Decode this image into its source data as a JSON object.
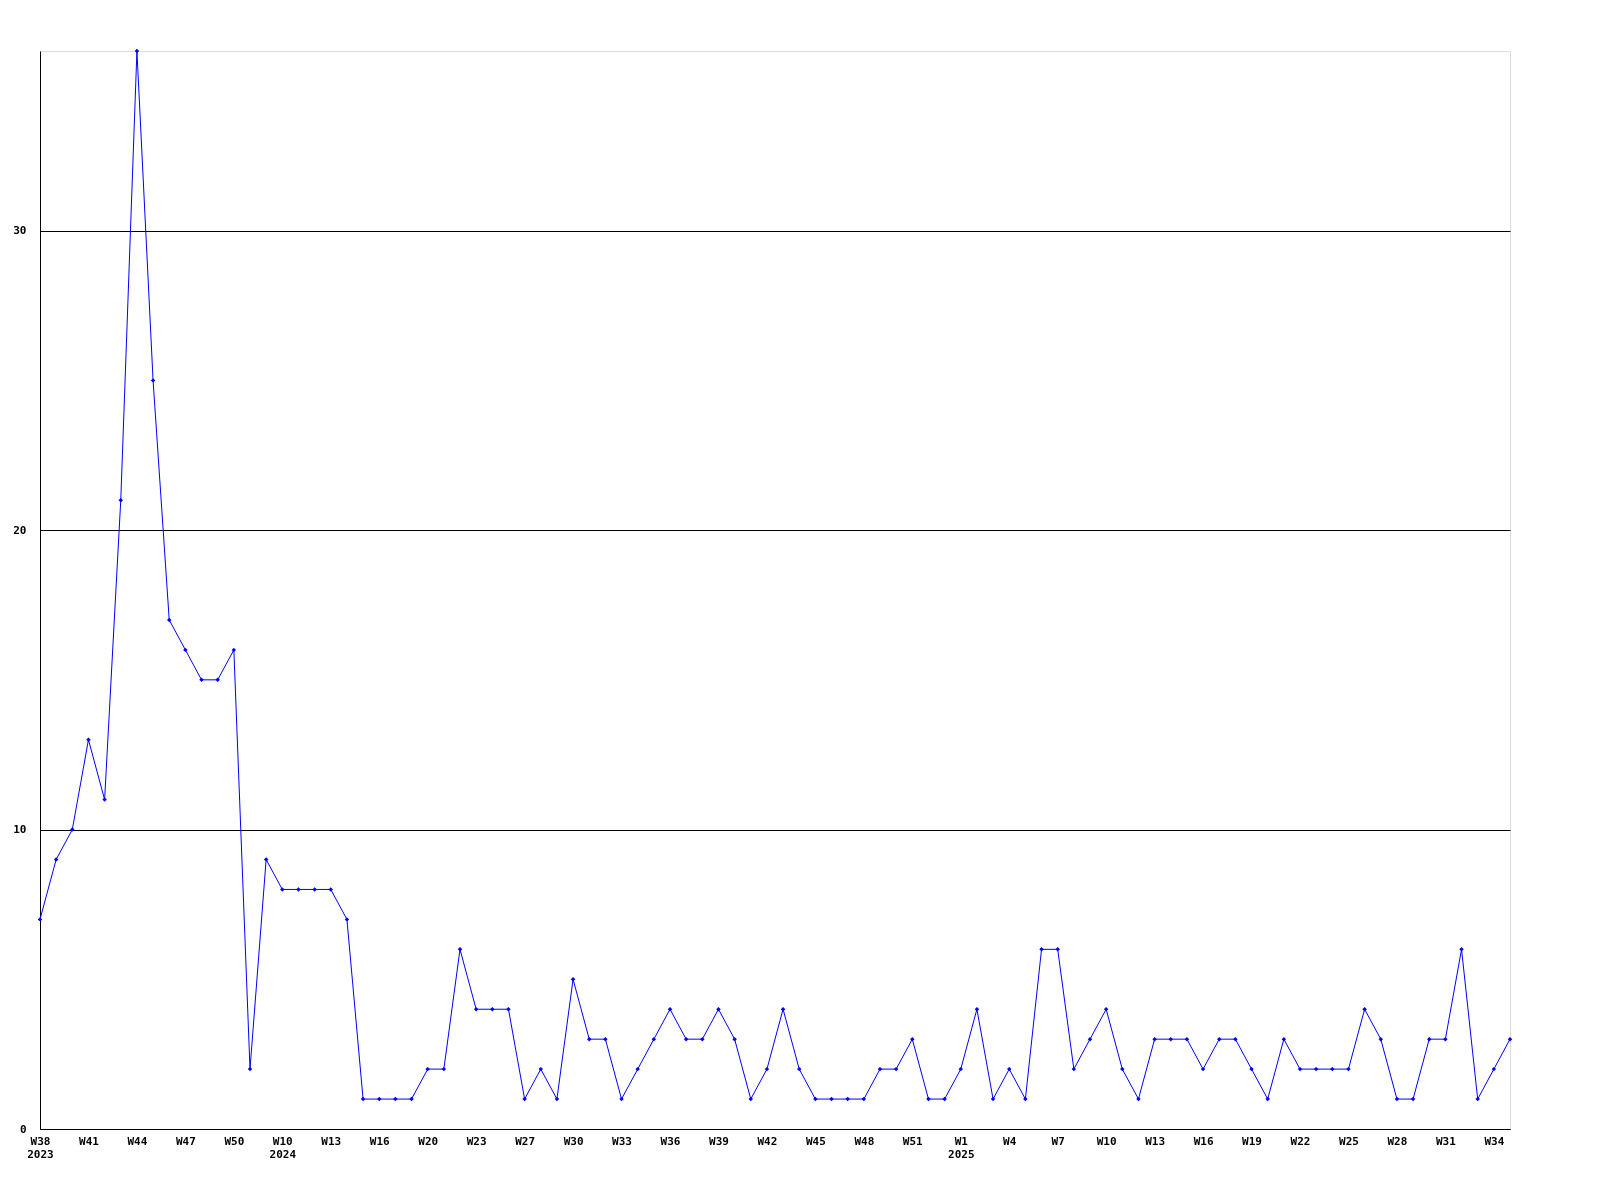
{
  "chart_data": {
    "type": "line",
    "categories": [
      "W38\n2023",
      null,
      null,
      "W41",
      null,
      null,
      "W44",
      null,
      null,
      "W47",
      null,
      null,
      "W50",
      null,
      null,
      "W10\n2024",
      null,
      null,
      "W13",
      null,
      null,
      "W16",
      null,
      null,
      "W20",
      null,
      null,
      "W23",
      null,
      null,
      "W27",
      null,
      null,
      "W30",
      null,
      null,
      "W33",
      null,
      null,
      "W36",
      null,
      null,
      "W39",
      null,
      null,
      "W42",
      null,
      null,
      "W45",
      null,
      null,
      "W48",
      null,
      null,
      "W51",
      null,
      null,
      "W1\n2025",
      null,
      null,
      "W4",
      null,
      null,
      "W7",
      null,
      null,
      "W10",
      null,
      null,
      "W13",
      null,
      null,
      "W16",
      null,
      null,
      "W19",
      null,
      null,
      "W22",
      null,
      null,
      "W25",
      null,
      null,
      "W28",
      null,
      null,
      "W31",
      null,
      null,
      "W34",
      null
    ],
    "series": [
      {
        "color": "#0000ff",
        "values": [
          7,
          9,
          10,
          13,
          11,
          21,
          36,
          25,
          17,
          16,
          15,
          15,
          16,
          2,
          9,
          8,
          8,
          8,
          8,
          7,
          1,
          1,
          1,
          1,
          2,
          2,
          6,
          4,
          4,
          4,
          1,
          2,
          1,
          5,
          3,
          3,
          1,
          2,
          3,
          4,
          3,
          3,
          4,
          3,
          1,
          2,
          4,
          2,
          1,
          1,
          1,
          1,
          2,
          2,
          3,
          1,
          1,
          2,
          4,
          1,
          2,
          1,
          6,
          6,
          2,
          3,
          4,
          2,
          1,
          3,
          3,
          3,
          2,
          3,
          3,
          2,
          1,
          3,
          2,
          2,
          2,
          2,
          4,
          3,
          1,
          1,
          3,
          3,
          6,
          1,
          2,
          3
        ]
      }
    ],
    "ylim": [
      0,
      36
    ],
    "yticks": [
      0,
      10,
      20,
      30
    ],
    "grid": "y",
    "marker": "diamond",
    "line_style": "solid"
  }
}
